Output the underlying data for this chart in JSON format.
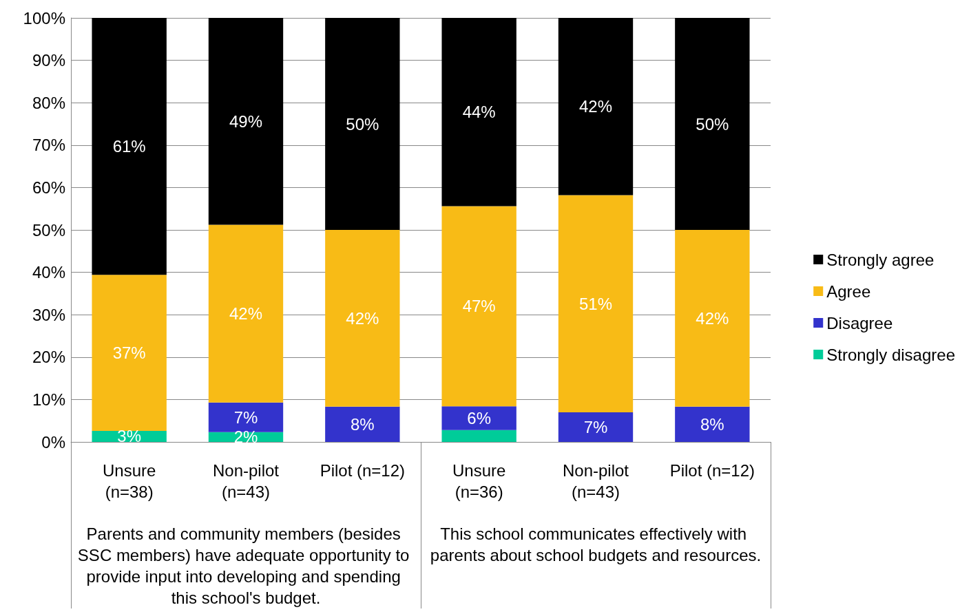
{
  "chart_data": {
    "type": "bar",
    "stacked": true,
    "categories": [
      "Unsure\n(n=38)",
      "Non-pilot\n(n=43)",
      "Pilot (n=12)",
      "Unsure\n(n=36)",
      "Non-pilot\n(n=43)",
      "Pilot (n=12)"
    ],
    "series": [
      {
        "name": "Strongly disagree",
        "color": "#00cc99",
        "values": [
          2.6,
          2.3,
          null,
          2.8,
          null,
          null
        ],
        "value_labels": [
          "3%",
          "2%",
          null,
          null,
          null,
          null
        ]
      },
      {
        "name": "Disagree",
        "color": "#3333cc",
        "values": [
          null,
          7.0,
          8.3,
          5.6,
          7.0,
          8.3
        ],
        "value_labels": [
          null,
          "7%",
          "8%",
          "6%",
          "7%",
          "8%"
        ]
      },
      {
        "name": "Agree",
        "color": "#f8bb16",
        "values": [
          36.8,
          41.9,
          41.7,
          47.2,
          51.2,
          41.7
        ],
        "value_labels": [
          "37%",
          "42%",
          "42%",
          "47%",
          "51%",
          "42%"
        ]
      },
      {
        "name": "Strongly agree",
        "color": "#000000",
        "values": [
          60.6,
          48.8,
          50,
          44.4,
          41.8,
          50
        ],
        "value_labels": [
          "61%",
          "49%",
          "50%",
          "44%",
          "42%",
          "50%"
        ]
      }
    ],
    "ylim": [
      0,
      100
    ],
    "yticks": [
      {
        "value": 0,
        "label": "0%"
      },
      {
        "value": 10,
        "label": "10%"
      },
      {
        "value": 20,
        "label": "20%"
      },
      {
        "value": 30,
        "label": "30%"
      },
      {
        "value": 40,
        "label": "40%"
      },
      {
        "value": 50,
        "label": "50%"
      },
      {
        "value": 60,
        "label": "60%"
      },
      {
        "value": 70,
        "label": "70%"
      },
      {
        "value": 80,
        "label": "80%"
      },
      {
        "value": 90,
        "label": "90%"
      },
      {
        "value": 100,
        "label": "100%"
      }
    ],
    "grid": "y",
    "legend": "right",
    "annotations": [
      "Parents and community members (besides SSC members) have adequate opportunity to provide input into developing and spending this school's budget.",
      "This school communicates effectively with parents about school budgets and resources."
    ]
  }
}
